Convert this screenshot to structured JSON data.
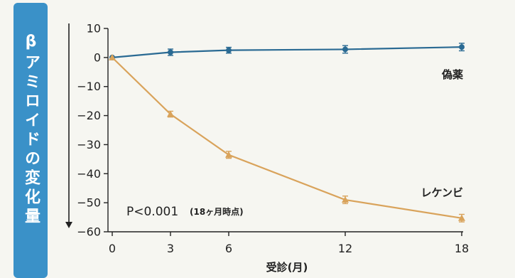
{
  "chart_data": {
    "type": "line",
    "ylabel": "βアミロイドの変化量",
    "xlabel": "受診(月)",
    "x": [
      0,
      3,
      6,
      12,
      18
    ],
    "x_ticks": [
      "0",
      "3",
      "6",
      "12",
      "18"
    ],
    "y_ticks": [
      "10",
      "0",
      "−10",
      "−20",
      "−30",
      "−40",
      "−50",
      "−60"
    ],
    "xlim": [
      0,
      18
    ],
    "ylim": [
      -60,
      10
    ],
    "grid": false,
    "series": [
      {
        "name": "偽薬",
        "color": "#2a6a93",
        "marker": "circle",
        "values": [
          0,
          1.8,
          2.5,
          2.8,
          3.6
        ],
        "errors": [
          0,
          1.1,
          1.0,
          1.3,
          1.3
        ]
      },
      {
        "name": "レケンビ",
        "color": "#d9a35b",
        "marker": "triangle",
        "values": [
          0,
          -19.5,
          -33.5,
          -49,
          -55.3
        ],
        "errors": [
          0,
          1.0,
          1.2,
          1.3,
          1.3
        ]
      }
    ],
    "annotation": {
      "main": "P<0.001",
      "sub": "(18ヶ月時点)"
    }
  }
}
